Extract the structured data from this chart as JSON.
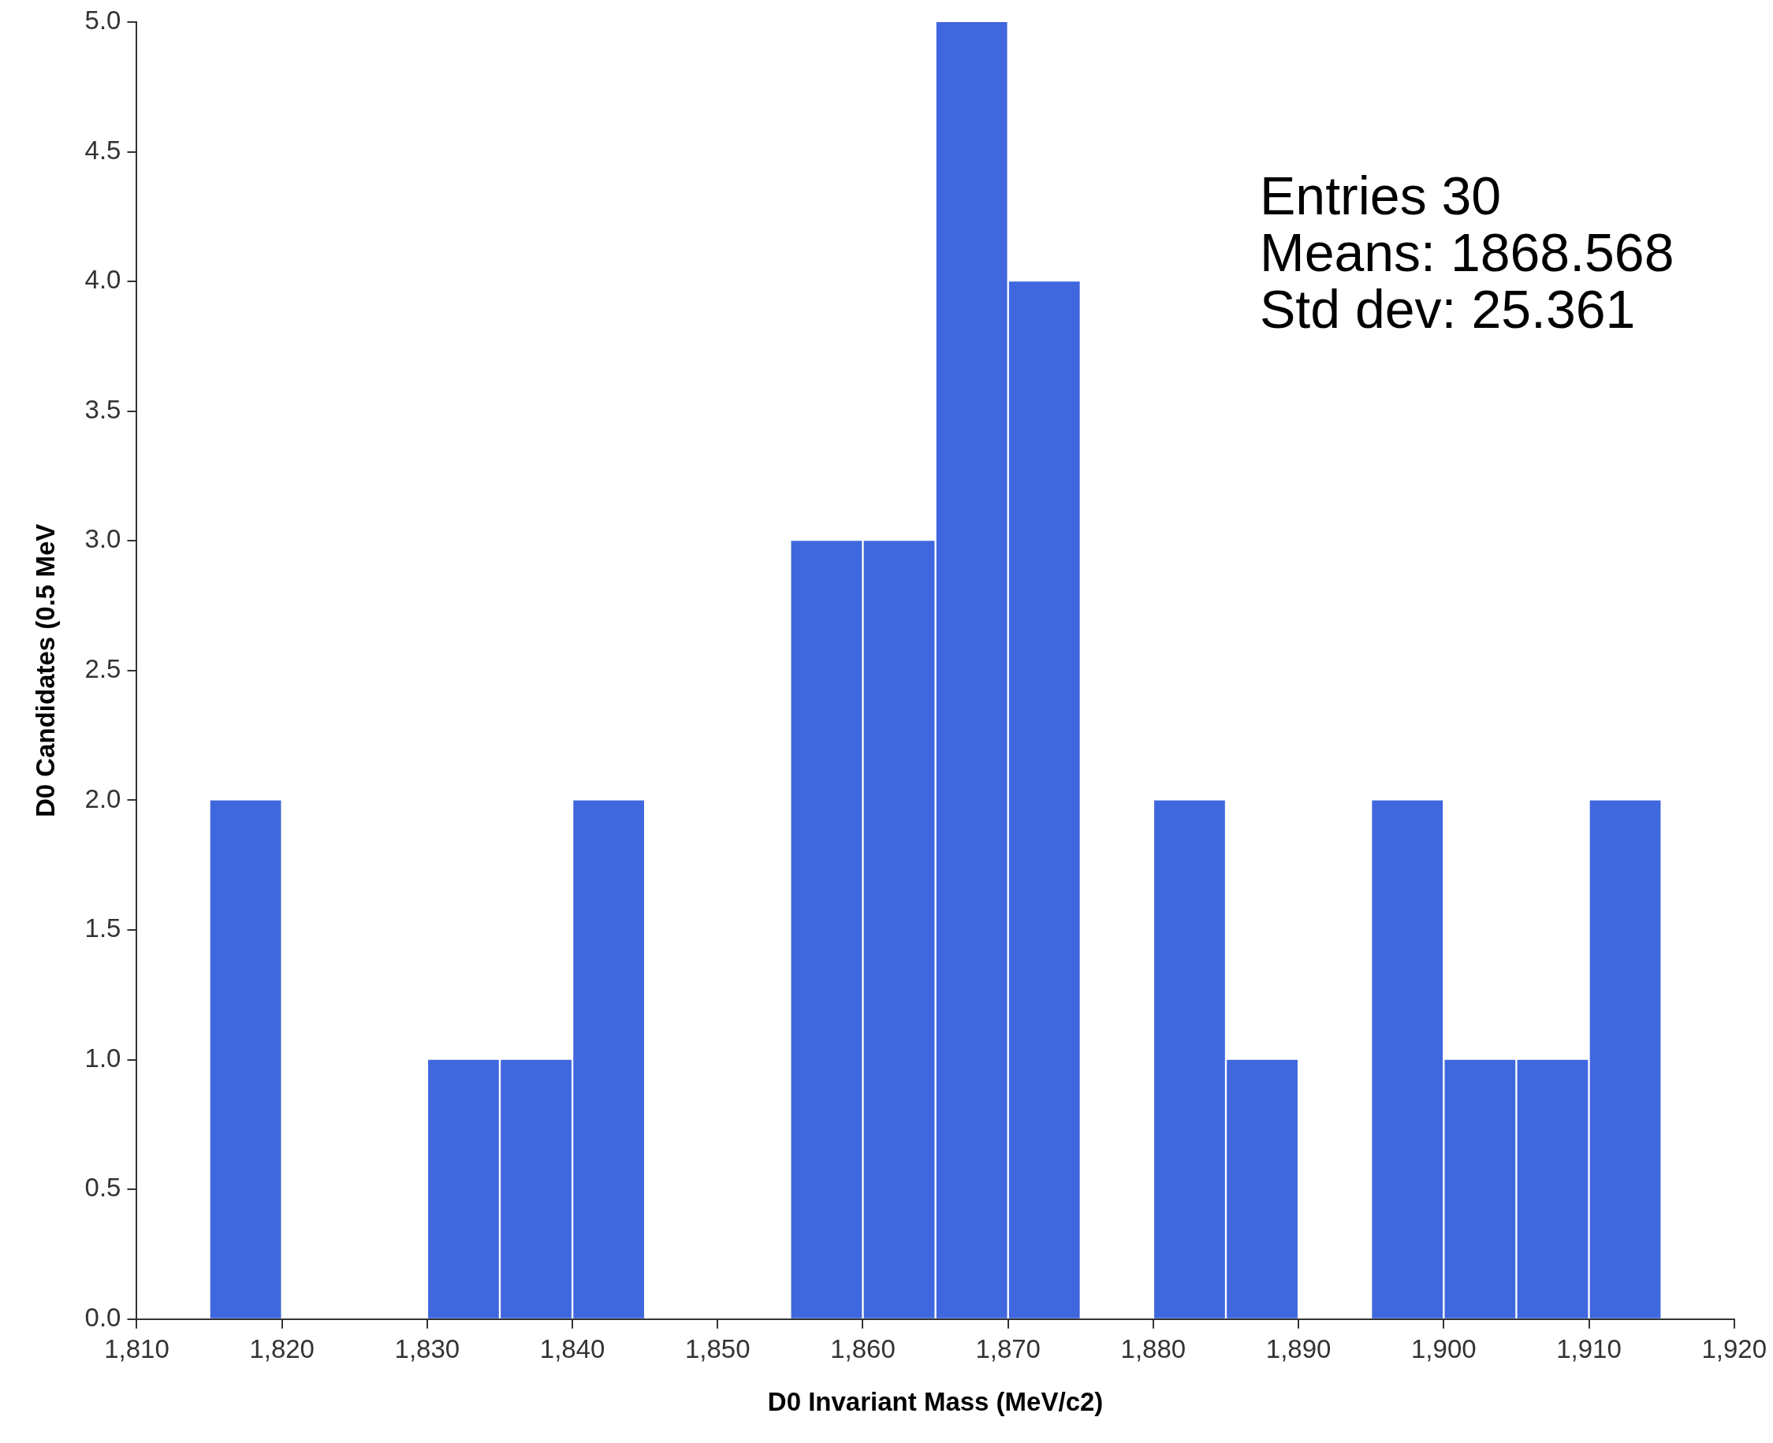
{
  "chart_data": {
    "type": "histogram",
    "xlabel": "D0 Invariant Mass (MeV/c2)",
    "ylabel": "D0 Candidates (0.5 MeV",
    "bins": [
      1815,
      1820,
      1825,
      1830,
      1835,
      1840,
      1845,
      1850,
      1855,
      1860,
      1865,
      1870,
      1875,
      1880,
      1885,
      1890,
      1895,
      1900,
      1905,
      1910,
      1915
    ],
    "values": [
      2,
      0,
      0,
      1,
      1,
      2,
      0,
      0,
      3,
      3,
      5,
      4,
      0,
      2,
      1,
      0,
      2,
      1,
      1,
      2
    ],
    "color": "#3f67de",
    "xlim": [
      1810,
      1920
    ],
    "xticks": [
      {
        "value": 1810,
        "label": "1,810"
      },
      {
        "value": 1820,
        "label": "1,820"
      },
      {
        "value": 1830,
        "label": "1,830"
      },
      {
        "value": 1840,
        "label": "1,840"
      },
      {
        "value": 1850,
        "label": "1,850"
      },
      {
        "value": 1860,
        "label": "1,860"
      },
      {
        "value": 1870,
        "label": "1,870"
      },
      {
        "value": 1880,
        "label": "1,880"
      },
      {
        "value": 1890,
        "label": "1,890"
      },
      {
        "value": 1900,
        "label": "1,900"
      },
      {
        "value": 1910,
        "label": "1,910"
      },
      {
        "value": 1920,
        "label": "1,920"
      }
    ],
    "ylim": [
      0,
      5
    ],
    "yticks": [
      {
        "value": 0,
        "label": "0.0"
      },
      {
        "value": 0.5,
        "label": "0.5"
      },
      {
        "value": 1,
        "label": "1.0"
      },
      {
        "value": 1.5,
        "label": "1.5"
      },
      {
        "value": 2,
        "label": "2.0"
      },
      {
        "value": 2.5,
        "label": "2.5"
      },
      {
        "value": 3,
        "label": "3.0"
      },
      {
        "value": 3.5,
        "label": "3.5"
      },
      {
        "value": 4,
        "label": "4.0"
      },
      {
        "value": 4.5,
        "label": "4.5"
      },
      {
        "value": 5,
        "label": "5.0"
      }
    ],
    "grid": false,
    "annotations": [
      "Entries 30",
      "Means: 1868.568",
      "Std dev: 25.361"
    ]
  }
}
